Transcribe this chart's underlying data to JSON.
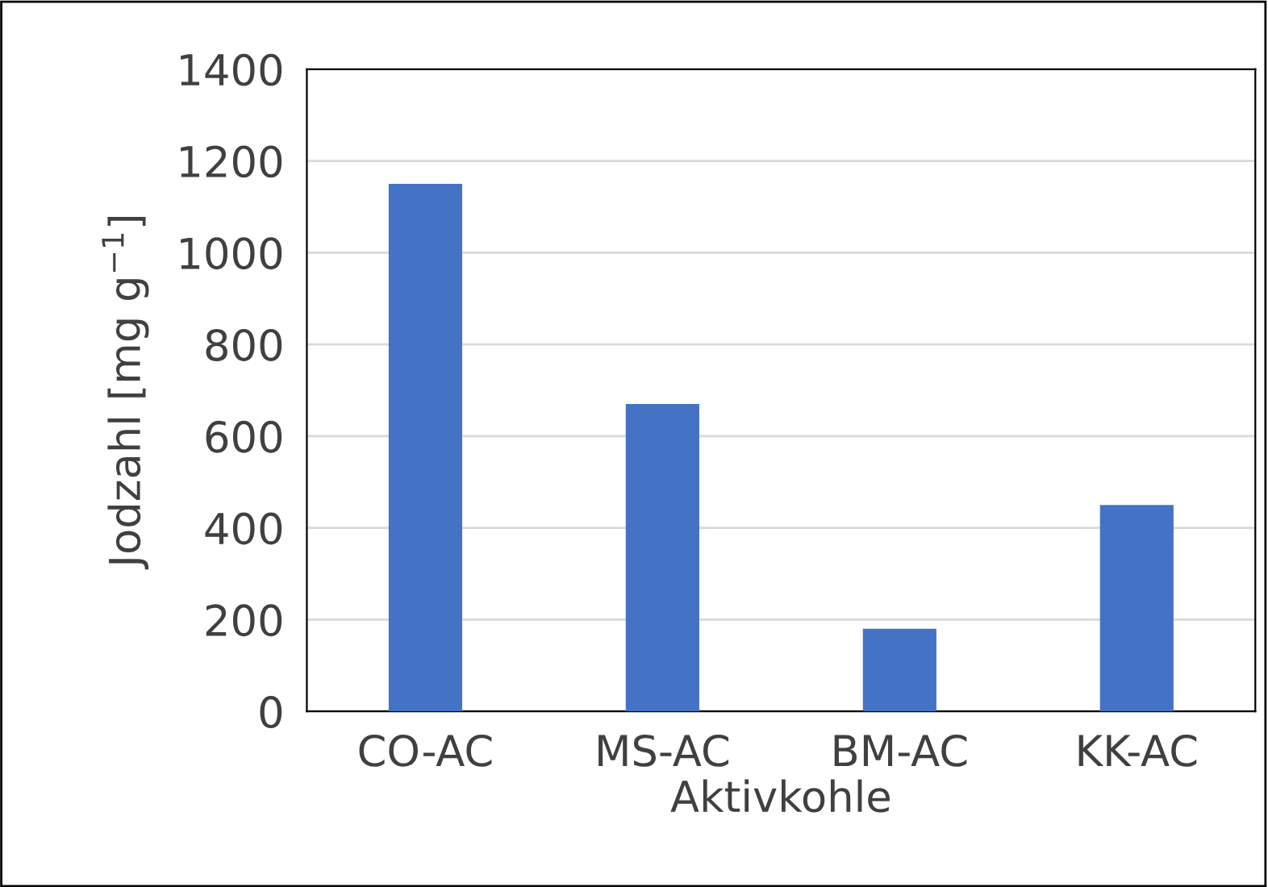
{
  "chart_data": {
    "type": "bar",
    "xlabel": "Aktivkohle",
    "ylabel": "Jodzahl [mg g$^{−1}$]",
    "categories": [
      "CO-AC",
      "MS-AC",
      "BM-AC",
      "KK-AC"
    ],
    "values": [
      1150,
      670,
      180,
      450
    ],
    "color": "#4472c4",
    "ylim": [
      0,
      1400
    ],
    "yticks": [
      0,
      200,
      400,
      600,
      800,
      1000,
      1200,
      1400
    ],
    "grid": "y"
  }
}
